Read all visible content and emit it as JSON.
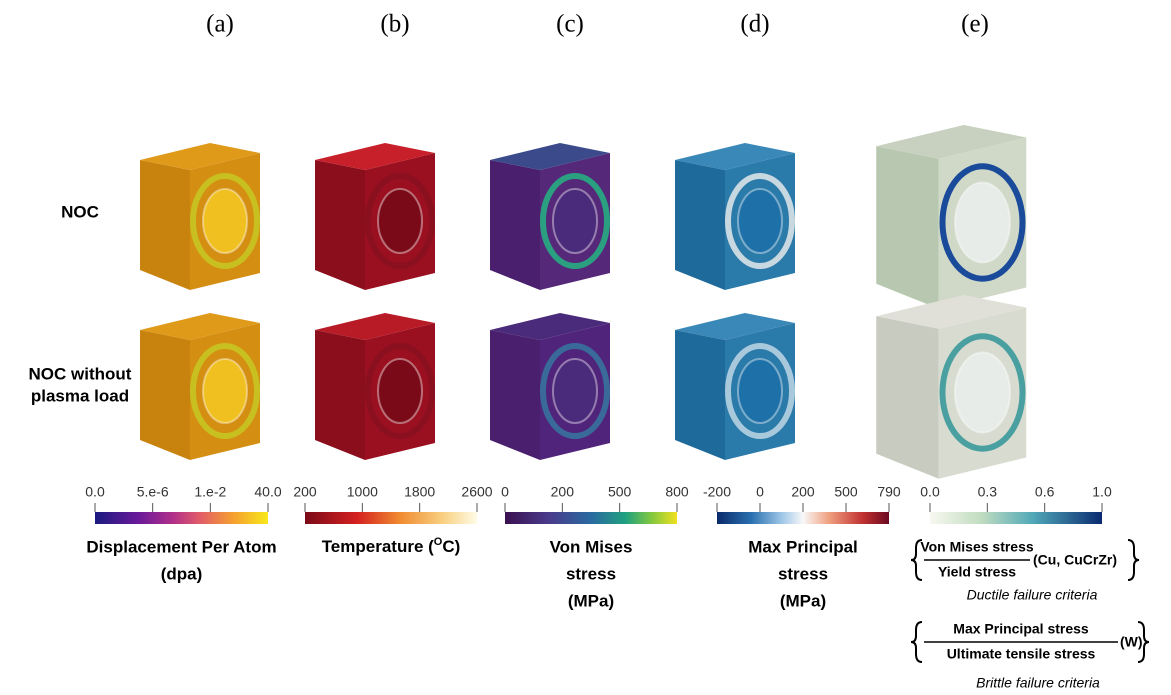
{
  "panels": [
    "(a)",
    "(b)",
    "(c)",
    "(d)",
    "(e)"
  ],
  "rows": [
    [
      "NOC"
    ],
    [
      "NOC without",
      "plasma load"
    ]
  ],
  "colorbars": [
    {
      "ticks": [
        "0.0",
        "5.e-6",
        "1.e-2",
        "40.0"
      ],
      "title": [
        "Displacement Per Atom",
        "(dpa)"
      ]
    },
    {
      "ticks": [
        "200",
        "1000",
        "1800",
        "2600"
      ],
      "title_parts": [
        "Temperature (",
        "O",
        "C)"
      ]
    },
    {
      "ticks": [
        "0",
        "200",
        "500",
        "800"
      ],
      "title": [
        "Von Mises",
        "stress",
        "(MPa)"
      ]
    },
    {
      "ticks": [
        "-200",
        "0",
        "200",
        "500",
        "790"
      ],
      "title": [
        "Max Principal",
        "stress",
        "(MPa)"
      ]
    },
    {
      "ticks": [
        "0.0",
        "0.3",
        "0.6",
        "1.0"
      ]
    }
  ],
  "criteria": [
    {
      "numerator": "Von Mises stress",
      "denominator": "Yield stress",
      "materials": "(Cu, CuCrZr)",
      "caption": "Ductile failure criteria"
    },
    {
      "numerator": "Max Principal stress",
      "denominator": "Ultimate tensile stress",
      "materials": "(W)",
      "caption": "Brittle failure criteria"
    }
  ]
}
